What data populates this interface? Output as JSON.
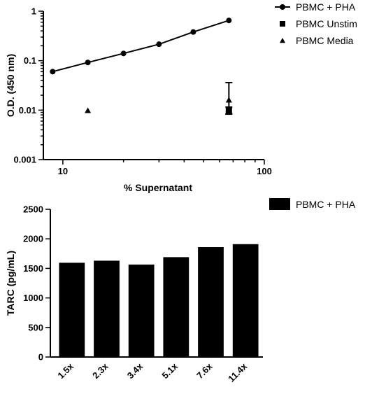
{
  "chart_data": [
    {
      "type": "scatter",
      "xlabel": "% Supernatant",
      "ylabel": "O.D. (450 nm)",
      "x_scale": "log",
      "y_scale": "log",
      "xlim": [
        8,
        100
      ],
      "ylim": [
        0.001,
        1
      ],
      "x_ticks": [
        {
          "v": 10,
          "label": "10"
        },
        {
          "v": 100,
          "label": "100"
        }
      ],
      "y_ticks": [
        {
          "v": 1,
          "label": "1"
        },
        {
          "v": 0.1,
          "label": "0.1"
        },
        {
          "v": 0.01,
          "label": "0.01"
        },
        {
          "v": 0.001,
          "label": "0.001"
        }
      ],
      "legend_position": "top-right",
      "series": [
        {
          "name": "PBMC + PHA",
          "marker": "circle",
          "line": true,
          "points": [
            {
              "x": 8.9,
              "y": 0.06
            },
            {
              "x": 13.3,
              "y": 0.092
            },
            {
              "x": 20,
              "y": 0.14
            },
            {
              "x": 30,
              "y": 0.215
            },
            {
              "x": 44.4,
              "y": 0.38
            },
            {
              "x": 66.7,
              "y": 0.65
            }
          ]
        },
        {
          "name": "PBMC Unstim",
          "marker": "square",
          "line": false,
          "points": [
            {
              "x": 66.7,
              "y": 0.0098,
              "err_low": 0.0083,
              "err_high": 0.0115
            }
          ]
        },
        {
          "name": "PBMC Media",
          "marker": "triangle",
          "line": false,
          "points": [
            {
              "x": 13.3,
              "y": 0.0098
            },
            {
              "x": 66.7,
              "y": 0.016,
              "err_low": 0.0085,
              "err_high": 0.036
            }
          ]
        }
      ]
    },
    {
      "type": "bar",
      "xlabel": "",
      "ylabel": "TARC (pg/mL)",
      "ylim": [
        0,
        2500
      ],
      "y_ticks": [
        0,
        500,
        1000,
        1500,
        2000,
        2500
      ],
      "categories": [
        "1.5x",
        "2.3x",
        "3.4x",
        "5.1x",
        "7.6x",
        "11.4x"
      ],
      "legend_position": "top-right",
      "series": [
        {
          "name": "PBMC + PHA",
          "values": [
            1595,
            1630,
            1565,
            1690,
            1860,
            1910
          ]
        }
      ]
    }
  ],
  "colors": {
    "ink": "#000000",
    "bar_fill": "#000000",
    "background": "#ffffff"
  }
}
